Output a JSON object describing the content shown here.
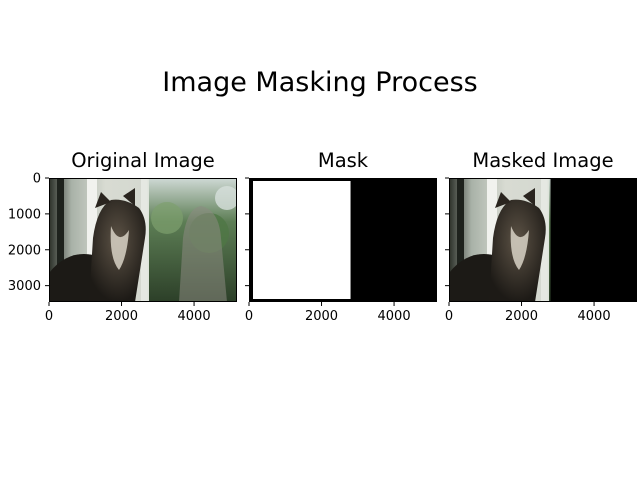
{
  "figure": {
    "suptitle": "Image Masking Process"
  },
  "chart_data": [
    {
      "type": "heatmap",
      "title": "Original Image",
      "content": "photo of a tabby cat looking up, with its reflection in a window",
      "xticks": [
        0,
        2000,
        4000
      ],
      "yticks": [
        0,
        1000,
        2000,
        3000
      ],
      "xlim": [
        0,
        5184
      ],
      "ylim": [
        3456,
        0
      ]
    },
    {
      "type": "heatmap",
      "title": "Mask",
      "content": "binary mask: white (1) for x < 2800, black (0) elsewhere; thin black border",
      "mask_split_x": 2800,
      "xticks": [
        0,
        2000,
        4000
      ],
      "yticks": [],
      "xlim": [
        0,
        5184
      ],
      "ylim": [
        3456,
        0
      ]
    },
    {
      "type": "heatmap",
      "title": "Masked Image",
      "content": "original photo kept where mask is white, black elsewhere",
      "mask_split_x": 2800,
      "xticks": [
        0,
        2000,
        4000
      ],
      "yticks": [],
      "xlim": [
        0,
        5184
      ],
      "ylim": [
        3456,
        0
      ]
    }
  ],
  "colors": {
    "mask_on": "#ffffff",
    "mask_off": "#000000"
  }
}
